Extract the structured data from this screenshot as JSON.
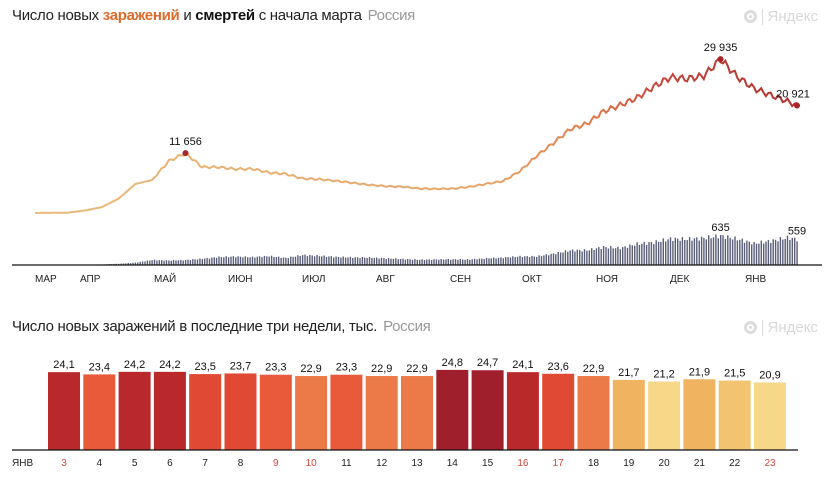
{
  "chart1": {
    "title_part1": "Число новых ",
    "title_infections": "заражений",
    "title_part2": " и ",
    "title_deaths": "смертей",
    "title_part3": " с начала марта",
    "region": "Россия",
    "logo_text": "Яндекс"
  },
  "chart2": {
    "title": "Число новых заражений в последние три недели, тыс.",
    "region": "Россия",
    "logo_text": "Яндекс"
  },
  "chart_data": [
    {
      "type": "line",
      "title": "Число новых заражений и смертей с начала марта",
      "x_start": "2020-03-10",
      "x_step_days": 7,
      "month_labels": [
        "МАР",
        "АПР",
        "МАЙ",
        "ИЮН",
        "ИЮЛ",
        "АВГ",
        "СЕН",
        "ОКТ",
        "НОЯ",
        "ДЕК",
        "ЯНВ"
      ],
      "infections": [
        3,
        30,
        70,
        500,
        1150,
        2774,
        5642,
        6411,
        10102,
        11656,
        8926,
        8915,
        8536,
        8595,
        7843,
        7600,
        6693,
        6562,
        6248,
        5862,
        5475,
        5204,
        5102,
        4748,
        4696,
        4729,
        5099,
        5670,
        6215,
        8135,
        11115,
        13592,
        16319,
        17347,
        19768,
        20977,
        22410,
        24581,
        26402,
        26097,
        26689,
        29935,
        26513,
        24246,
        22934,
        21734,
        20921
      ],
      "deaths": [
        0,
        0,
        1,
        2,
        11,
        28,
        51,
        108,
        98,
        107,
        135,
        174,
        182,
        171,
        193,
        154,
        216,
        198,
        175,
        165,
        161,
        144,
        129,
        114,
        121,
        123,
        119,
        144,
        160,
        186,
        186,
        244,
        317,
        320,
        389,
        368,
        456,
        491,
        569,
        560,
        587,
        635,
        565,
        469,
        520,
        594,
        559
      ],
      "last_point_days": 4,
      "annotations": [
        {
          "series": "infections",
          "index": 9,
          "label": "11 656"
        },
        {
          "series": "infections",
          "index": 41,
          "label": "29 935"
        },
        {
          "series": "infections",
          "index": 46,
          "label": "20 921"
        },
        {
          "series": "deaths",
          "index": 41,
          "label": "635"
        },
        {
          "series": "deaths",
          "index": 46,
          "label": "559"
        }
      ],
      "colors": {
        "early": "#e9bb7c",
        "mid": "#e07f4c",
        "late": "#b3302c",
        "deaths": "#5a5e78"
      }
    },
    {
      "type": "bar",
      "title": "Число новых заражений в последние три недели, тыс.",
      "month_label": "ЯНВ",
      "categories": [
        "3",
        "4",
        "5",
        "6",
        "7",
        "8",
        "9",
        "10",
        "11",
        "12",
        "13",
        "14",
        "15",
        "16",
        "17",
        "18",
        "19",
        "20",
        "21",
        "22",
        "23"
      ],
      "values_labels": [
        "24,1",
        "23,4",
        "24,2",
        "24,2",
        "23,5",
        "23,7",
        "23,3",
        "22,9",
        "23,3",
        "22,9",
        "22,9",
        "24,8",
        "24,7",
        "24,1",
        "23,6",
        "22,9",
        "21,7",
        "21,2",
        "21,9",
        "21,5",
        "20,9"
      ],
      "values": [
        24.1,
        23.4,
        24.2,
        24.2,
        23.5,
        23.7,
        23.3,
        22.9,
        23.3,
        22.9,
        22.9,
        24.8,
        24.7,
        24.1,
        23.6,
        22.9,
        21.7,
        21.2,
        21.9,
        21.5,
        20.9
      ],
      "weekend": [
        true,
        false,
        false,
        false,
        false,
        false,
        true,
        true,
        false,
        false,
        false,
        false,
        false,
        true,
        true,
        false,
        false,
        false,
        false,
        false,
        true
      ],
      "bar_colors": [
        "#b9292c",
        "#e85a3a",
        "#b9292c",
        "#b9292c",
        "#e04a35",
        "#e04a35",
        "#e85a3a",
        "#ec7a48",
        "#e85a3a",
        "#ec7a48",
        "#ec7a48",
        "#a01f2c",
        "#a01f2c",
        "#b9292c",
        "#e04a35",
        "#ec7a48",
        "#f0b35f",
        "#f6d888",
        "#f0b35f",
        "#f3c46f",
        "#f6d888"
      ],
      "ylim": [
        0,
        25
      ]
    }
  ]
}
